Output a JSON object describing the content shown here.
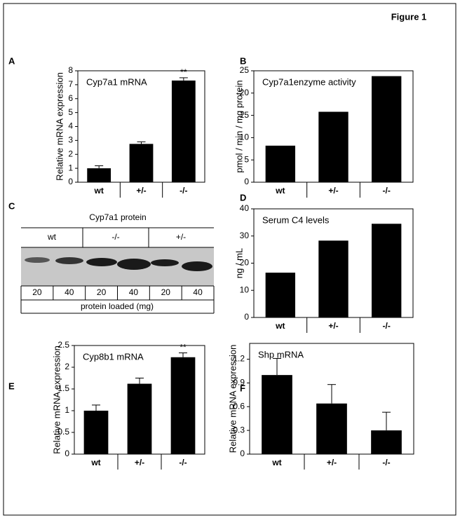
{
  "figure_title": "Figure 1",
  "chart_data": [
    {
      "type": "bar",
      "panel": "A",
      "title": "Cyp7a1 mRNA",
      "y_label": "Relative mRNA expression",
      "categories": [
        "wt",
        "+/-",
        "-/-"
      ],
      "values": [
        1.0,
        2.75,
        7.3
      ],
      "errors": [
        0.18,
        0.15,
        0.2
      ],
      "significance": [
        null,
        null,
        "**"
      ],
      "color": "#000000",
      "ylim": [
        0,
        8
      ],
      "yticks": [
        0,
        1,
        2,
        3,
        4,
        5,
        6,
        7,
        8
      ]
    },
    {
      "type": "bar",
      "panel": "B",
      "title": "Cyp7a1enzyme activity",
      "y_label": "pmol / min / mg protein",
      "categories": [
        "wt",
        "+/-",
        "-/-"
      ],
      "values": [
        8.2,
        15.8,
        23.8
      ],
      "color": "#000000",
      "ylim": [
        0,
        25
      ],
      "yticks": [
        0,
        5,
        10,
        15,
        20,
        25
      ]
    },
    {
      "type": "bar",
      "panel": "D",
      "title": "Serum C4 levels",
      "y_label": "ng / mL",
      "categories": [
        "wt",
        "+/-",
        "-/-"
      ],
      "values": [
        16.5,
        28.3,
        34.5
      ],
      "color": "#000000",
      "ylim": [
        0,
        40
      ],
      "yticks": [
        0,
        10,
        20,
        30,
        40
      ]
    },
    {
      "type": "bar",
      "panel": "E",
      "title": "Cyp8b1 mRNA",
      "y_label": "Relative mRNA expression",
      "categories": [
        "wt",
        "+/-",
        "-/-"
      ],
      "values": [
        1.0,
        1.62,
        2.23
      ],
      "errors": [
        0.13,
        0.13,
        0.1
      ],
      "significance": [
        null,
        null,
        "**"
      ],
      "color": "#000000",
      "ylim": [
        0,
        2.5
      ],
      "yticks": [
        0,
        0.5,
        1,
        1.5,
        2,
        2.5
      ]
    },
    {
      "type": "bar",
      "panel": "F",
      "title": "Shp mRNA",
      "y_label": "Relative mRNA expression",
      "categories": [
        "wt",
        "+/-",
        "-/-"
      ],
      "values": [
        1.0,
        0.64,
        0.3
      ],
      "errors": [
        0.21,
        0.24,
        0.23
      ],
      "color": "#000000",
      "ylim": [
        0,
        1.4
      ],
      "yticks": [
        0,
        0.3,
        0.6,
        0.9,
        1.2
      ]
    }
  ],
  "blot": {
    "panel": "C",
    "title": "Cyp7a1 protein",
    "groups": [
      "wt",
      "-/-",
      "+/-"
    ],
    "lanes": [
      20,
      40,
      20,
      40,
      20,
      40
    ],
    "footer": "protein loaded  (mg)"
  }
}
